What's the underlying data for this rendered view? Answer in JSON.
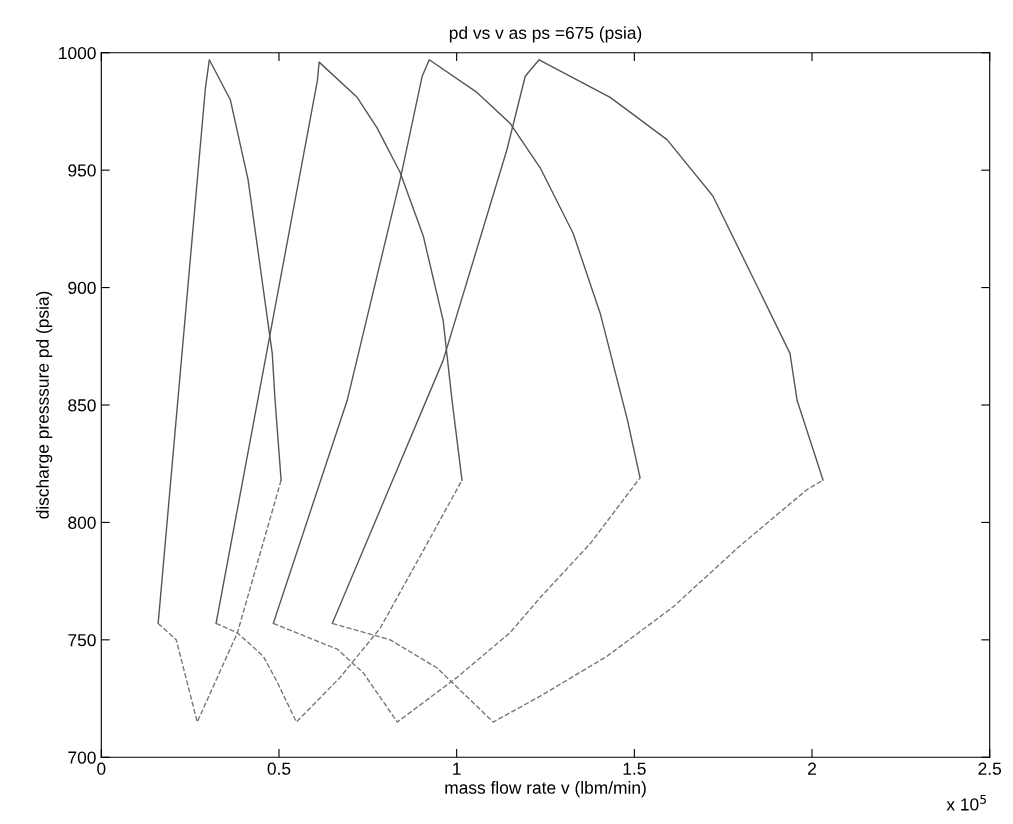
{
  "chart_data": {
    "type": "line",
    "title": "pd vs v as ps =675 (psia)",
    "xlabel": "mass flow rate v (lbm/min)",
    "ylabel": "discharge presssure pd (psia)",
    "annotations": [
      "x 10$^{5}$"
    ],
    "series": [
      {
        "color": "#555555",
        "x": [
          0.16,
          0.293,
          0.304,
          0.363,
          0.413,
          0.481,
          0.489,
          0.506
        ],
        "values": [
          757,
          985,
          997,
          980,
          946,
          872,
          852,
          818
        ]
      },
      {
        "color": "#777777",
        "line_style": "dashed",
        "x": [
          0.16,
          0.211,
          0.27,
          0.383,
          0.506
        ],
        "values": [
          757,
          750,
          715,
          753,
          818
        ]
      },
      {
        "color": "#555555",
        "x": [
          0.323,
          0.608,
          0.613,
          0.72,
          0.776,
          0.841,
          0.906,
          0.962,
          0.987,
          1.015
        ],
        "values": [
          757,
          988,
          996,
          981,
          968,
          949,
          922,
          886,
          852,
          818
        ]
      },
      {
        "color": "#777777",
        "line_style": "dashed",
        "x": [
          0.323,
          0.383,
          0.456,
          0.495,
          0.549,
          0.672,
          0.785,
          0.906,
          1.015
        ],
        "values": [
          757,
          753,
          743,
          732,
          715,
          734,
          755,
          788,
          818
        ]
      },
      {
        "color": "#555555",
        "x": [
          0.484,
          0.692,
          0.841,
          0.903,
          0.923,
          1.058,
          1.15,
          1.235,
          1.328,
          1.404,
          1.48,
          1.516
        ],
        "values": [
          757,
          852,
          946,
          990,
          997,
          983,
          970,
          951,
          923,
          889,
          844,
          819
        ]
      },
      {
        "color": "#777777",
        "line_style": "dashed",
        "x": [
          0.484,
          0.664,
          0.737,
          0.833,
          1.001,
          1.15,
          1.235,
          1.376,
          1.516
        ],
        "values": [
          757,
          746,
          736,
          715,
          734,
          753,
          768,
          791,
          819
        ]
      },
      {
        "color": "#555555",
        "x": [
          0.65,
          0.962,
          1.142,
          1.193,
          1.232,
          1.432,
          1.592,
          1.721,
          1.854,
          1.938,
          1.958,
          2.031
        ],
        "values": [
          757,
          869,
          959,
          990,
          997,
          981,
          963,
          939,
          898,
          872,
          852,
          818
        ]
      },
      {
        "color": "#777777",
        "line_style": "dashed",
        "x": [
          0.65,
          0.813,
          0.945,
          1.103,
          1.235,
          1.423,
          1.609,
          1.797,
          1.986,
          2.031
        ],
        "values": [
          757,
          750,
          738,
          715,
          726,
          743,
          764,
          790,
          814,
          818
        ]
      }
    ],
    "xlim": [
      0,
      2.5
    ],
    "xticks": [
      0,
      0.5,
      1,
      1.5,
      2,
      2.5
    ],
    "ylim": [
      700,
      1000
    ],
    "yticks": [
      700,
      750,
      800,
      850,
      900,
      950,
      1000
    ],
    "line_style": "solid"
  }
}
